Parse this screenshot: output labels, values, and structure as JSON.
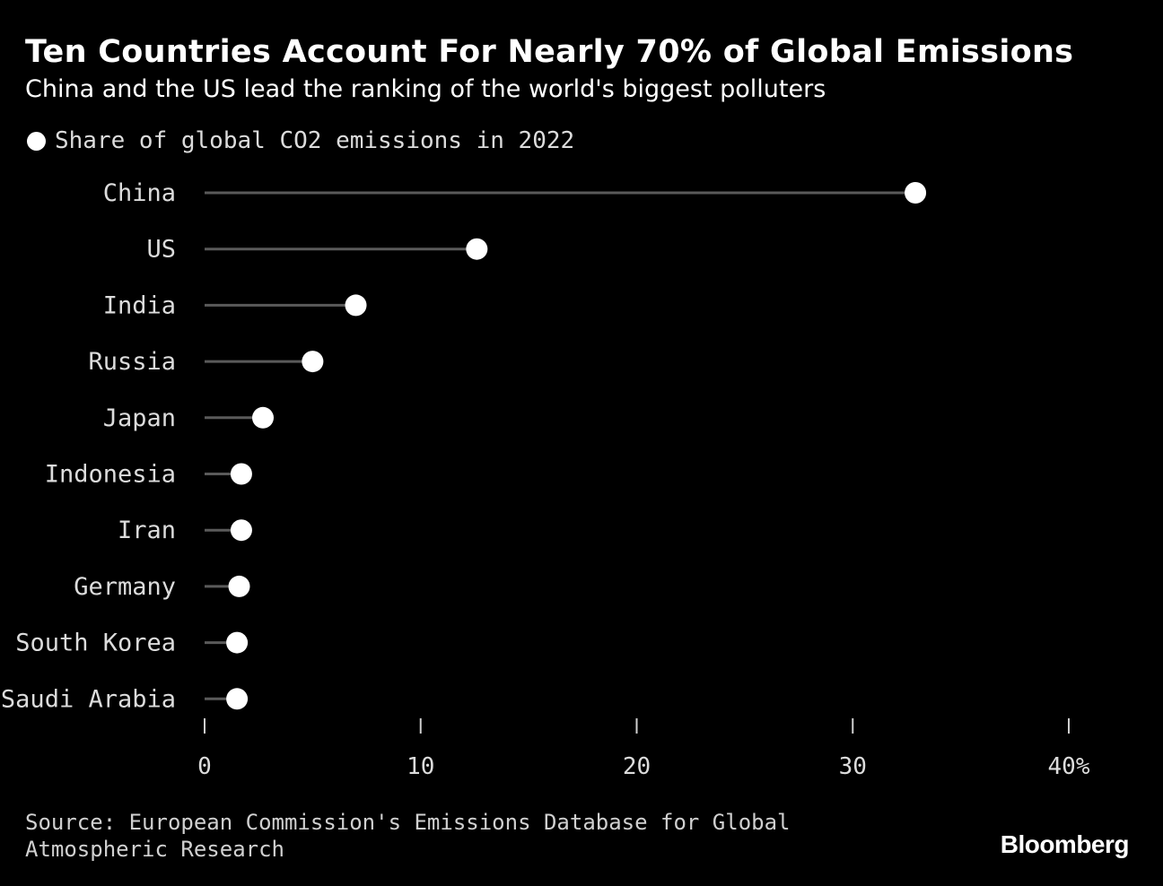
{
  "header": {
    "title": "Ten Countries Account For Nearly 70% of Global Emissions",
    "subtitle": "China and the US lead the ranking of the world's biggest polluters"
  },
  "footer": {
    "source": "Source: European Commission's Emissions Database for Global Atmospheric Research",
    "brand": "Bloomberg"
  },
  "colors": {
    "background": "#000000",
    "dot": "#ffffff",
    "stem": "#5a5a5a",
    "text": "#dcdcdc"
  },
  "chart_data": {
    "type": "lollipop",
    "title": "Ten Countries Account For Nearly 70% of Global Emissions",
    "subtitle": "China and the US lead the ranking of the world's biggest polluters",
    "legend": [
      {
        "name": "Share of global CO2 emissions in 2022",
        "marker": "dot"
      }
    ],
    "legend_position": "top-left",
    "categories": [
      "China",
      "US",
      "India",
      "Russia",
      "Japan",
      "Indonesia",
      "Iran",
      "Germany",
      "South Korea",
      "Saudi Arabia"
    ],
    "series": [
      {
        "name": "Share of global CO2 emissions in 2022",
        "values": [
          32.9,
          12.6,
          7.0,
          5.0,
          2.7,
          1.7,
          1.7,
          1.6,
          1.5,
          1.5
        ]
      }
    ],
    "xlim": [
      0,
      40
    ],
    "xticks": [
      0,
      10,
      20,
      30,
      40
    ],
    "xtick_labels": [
      "0",
      "10",
      "20",
      "30",
      "40%"
    ],
    "grid": false
  }
}
